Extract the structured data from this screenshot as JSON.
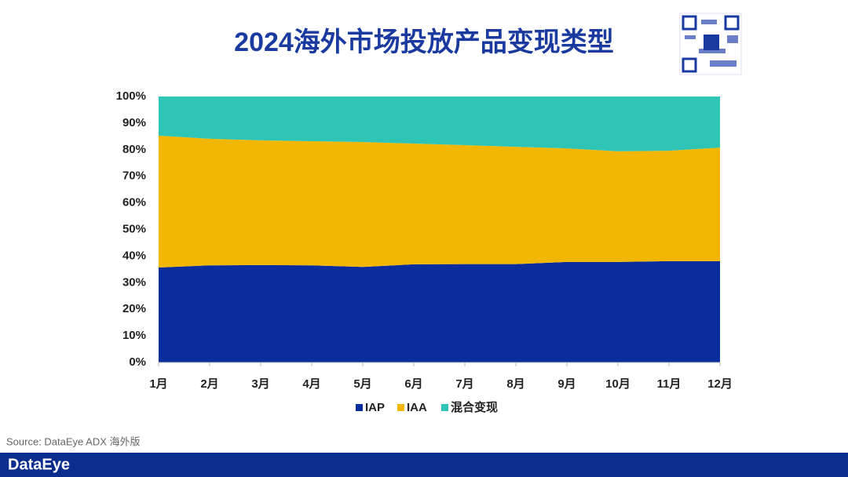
{
  "chart_data": {
    "type": "area",
    "stacked": true,
    "title": "2024海外市场投放产品变现类型",
    "source": "Source: DataEye ADX 海外版",
    "brand": "DataEye",
    "categories": [
      "1月",
      "2月",
      "3月",
      "4月",
      "5月",
      "6月",
      "7月",
      "8月",
      "9月",
      "10月",
      "11月",
      "12月"
    ],
    "series": [
      {
        "name": "IAP",
        "color": "#0a2d9e",
        "values": [
          35.7,
          36.5,
          36.6,
          36.5,
          35.9,
          36.9,
          37.0,
          37.0,
          37.8,
          37.8,
          38.1,
          38.1
        ]
      },
      {
        "name": "IAA",
        "color": "#f2b705",
        "values": [
          49.6,
          47.6,
          46.9,
          46.7,
          47.0,
          45.4,
          44.7,
          44.1,
          42.7,
          41.6,
          41.5,
          42.7
        ]
      },
      {
        "name": "混合变现",
        "color": "#2ec4b6",
        "values": [
          14.7,
          15.9,
          16.5,
          16.8,
          17.1,
          17.7,
          18.3,
          18.9,
          19.5,
          20.6,
          20.4,
          19.2
        ]
      }
    ],
    "ylim": [
      0,
      100
    ],
    "yticks": [
      {
        "value": 0,
        "label": "0%"
      },
      {
        "value": 10,
        "label": "10%"
      },
      {
        "value": 20,
        "label": "20%"
      },
      {
        "value": 30,
        "label": "30%"
      },
      {
        "value": 40,
        "label": "40%"
      },
      {
        "value": 50,
        "label": "50%"
      },
      {
        "value": 60,
        "label": "60%"
      },
      {
        "value": 70,
        "label": "70%"
      },
      {
        "value": 80,
        "label": "80%"
      },
      {
        "value": 90,
        "label": "90%"
      },
      {
        "value": 100,
        "label": "100%"
      }
    ],
    "legend": "bottom"
  }
}
